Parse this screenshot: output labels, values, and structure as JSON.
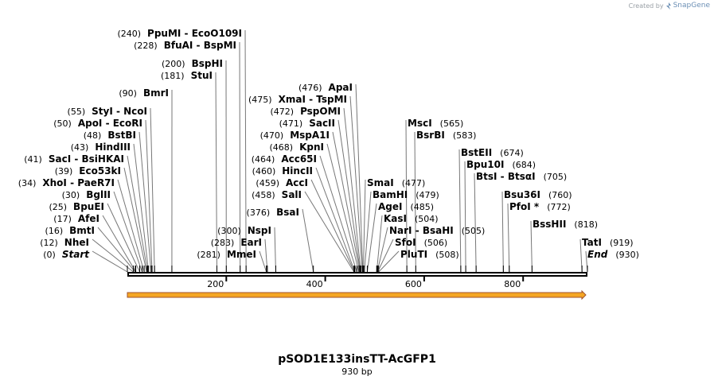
{
  "branding": {
    "created_by": "Created by",
    "product": "SnapGene"
  },
  "map": {
    "title": "pSOD1E133insTT-AcGFP1",
    "length_label": "930 bp",
    "length": 930
  },
  "colors": {
    "feature_fill": "#f5a623",
    "feature_stroke": "#a0522d",
    "line": "#000000",
    "leader": "#777777"
  },
  "ruler": {
    "ticks": [
      200,
      400,
      600,
      800
    ],
    "tick_labels": [
      "200",
      "400",
      "600",
      "800"
    ]
  },
  "feature": {
    "name": "feature-arrow",
    "start": 0,
    "end": 930,
    "direction": "forward"
  },
  "sites": [
    {
      "pos": 0,
      "pos_label": "(0)",
      "name": "Start",
      "terminal": true
    },
    {
      "pos": 12,
      "pos_label": "(12)",
      "name": "NheI"
    },
    {
      "pos": 16,
      "pos_label": "(16)",
      "name": "BmtI"
    },
    {
      "pos": 17,
      "pos_label": "(17)",
      "name": "AfeI"
    },
    {
      "pos": 25,
      "pos_label": "(25)",
      "name": "BpuEI"
    },
    {
      "pos": 30,
      "pos_label": "(30)",
      "name": "BglII"
    },
    {
      "pos": 34,
      "pos_label": "(34)",
      "name": "XhoI",
      "alt": "PaeR7I"
    },
    {
      "pos": 39,
      "pos_label": "(39)",
      "name": "Eco53kI"
    },
    {
      "pos": 41,
      "pos_label": "(41)",
      "name": "SacI",
      "alt": "BsiHKAI"
    },
    {
      "pos": 43,
      "pos_label": "(43)",
      "name": "HindIII"
    },
    {
      "pos": 48,
      "pos_label": "(48)",
      "name": "BstBI"
    },
    {
      "pos": 50,
      "pos_label": "(50)",
      "name": "ApoI",
      "alt": "EcoRI"
    },
    {
      "pos": 55,
      "pos_label": "(55)",
      "name": "StyI",
      "alt": "NcoI"
    },
    {
      "pos": 90,
      "pos_label": "(90)",
      "name": "BmrI"
    },
    {
      "pos": 181,
      "pos_label": "(181)",
      "name": "StuI"
    },
    {
      "pos": 200,
      "pos_label": "(200)",
      "name": "BspHI"
    },
    {
      "pos": 228,
      "pos_label": "(228)",
      "name": "BfuAI",
      "alt": "BspMI"
    },
    {
      "pos": 240,
      "pos_label": "(240)",
      "name": "PpuMI",
      "alt": "EcoO109I"
    },
    {
      "pos": 281,
      "pos_label": "(281)",
      "name": "MmeI"
    },
    {
      "pos": 283,
      "pos_label": "(283)",
      "name": "EarI"
    },
    {
      "pos": 300,
      "pos_label": "(300)",
      "name": "NspI"
    },
    {
      "pos": 376,
      "pos_label": "(376)",
      "name": "BsaI"
    },
    {
      "pos": 458,
      "pos_label": "(458)",
      "name": "SalI"
    },
    {
      "pos": 459,
      "pos_label": "(459)",
      "name": "AccI"
    },
    {
      "pos": 460,
      "pos_label": "(460)",
      "name": "HincII"
    },
    {
      "pos": 464,
      "pos_label": "(464)",
      "name": "Acc65I"
    },
    {
      "pos": 468,
      "pos_label": "(468)",
      "name": "KpnI"
    },
    {
      "pos": 470,
      "pos_label": "(470)",
      "name": "MspA1I"
    },
    {
      "pos": 471,
      "pos_label": "(471)",
      "name": "SacII"
    },
    {
      "pos": 472,
      "pos_label": "(472)",
      "name": "PspOMI"
    },
    {
      "pos": 475,
      "pos_label": "(475)",
      "name": "XmaI",
      "alt": "TspMI"
    },
    {
      "pos": 476,
      "pos_label": "(476)",
      "name": "ApaI"
    },
    {
      "pos": 477,
      "pos_label": "(477)",
      "name": "SmaI"
    },
    {
      "pos": 479,
      "pos_label": "(479)",
      "name": "BamHI"
    },
    {
      "pos": 485,
      "pos_label": "(485)",
      "name": "AgeI"
    },
    {
      "pos": 504,
      "pos_label": "(504)",
      "name": "KasI"
    },
    {
      "pos": 505,
      "pos_label": "(505)",
      "name": "NarI",
      "alt": "BsaHI"
    },
    {
      "pos": 506,
      "pos_label": "(506)",
      "name": "SfoI"
    },
    {
      "pos": 508,
      "pos_label": "(508)",
      "name": "PluTI"
    },
    {
      "pos": 565,
      "pos_label": "(565)",
      "name": "MscI"
    },
    {
      "pos": 583,
      "pos_label": "(583)",
      "name": "BsrBI"
    },
    {
      "pos": 674,
      "pos_label": "(674)",
      "name": "BstEII"
    },
    {
      "pos": 684,
      "pos_label": "(684)",
      "name": "Bpu10I"
    },
    {
      "pos": 705,
      "pos_label": "(705)",
      "name": "BtsI",
      "alt": "BtsαI"
    },
    {
      "pos": 760,
      "pos_label": "(760)",
      "name": "Bsu36I"
    },
    {
      "pos": 772,
      "pos_label": "(772)",
      "name": "PfoI *"
    },
    {
      "pos": 818,
      "pos_label": "(818)",
      "name": "BssHII"
    },
    {
      "pos": 919,
      "pos_label": "(919)",
      "name": "TatI"
    },
    {
      "pos": 930,
      "pos_label": "(930)",
      "name": "End",
      "terminal": true
    }
  ]
}
